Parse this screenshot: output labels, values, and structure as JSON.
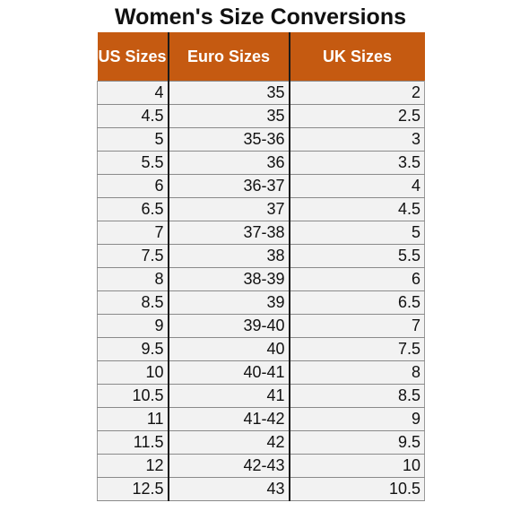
{
  "title": "Women's Size Conversions",
  "colors": {
    "header_bg": "#c55a11",
    "header_text": "#ffffff",
    "cell_bg": "#f2f2f2"
  },
  "table": {
    "columns": [
      "US Sizes",
      "Euro Sizes",
      "UK Sizes"
    ],
    "rows": [
      [
        "4",
        "35",
        "2"
      ],
      [
        "4.5",
        "35",
        "2.5"
      ],
      [
        "5",
        "35-36",
        "3"
      ],
      [
        "5.5",
        "36",
        "3.5"
      ],
      [
        "6",
        "36-37",
        "4"
      ],
      [
        "6.5",
        "37",
        "4.5"
      ],
      [
        "7",
        "37-38",
        "5"
      ],
      [
        "7.5",
        "38",
        "5.5"
      ],
      [
        "8",
        "38-39",
        "6"
      ],
      [
        "8.5",
        "39",
        "6.5"
      ],
      [
        "9",
        "39-40",
        "7"
      ],
      [
        "9.5",
        "40",
        "7.5"
      ],
      [
        "10",
        "40-41",
        "8"
      ],
      [
        "10.5",
        "41",
        "8.5"
      ],
      [
        "11",
        "41-42",
        "9"
      ],
      [
        "11.5",
        "42",
        "9.5"
      ],
      [
        "12",
        "42-43",
        "10"
      ],
      [
        "12.5",
        "43",
        "10.5"
      ]
    ]
  }
}
